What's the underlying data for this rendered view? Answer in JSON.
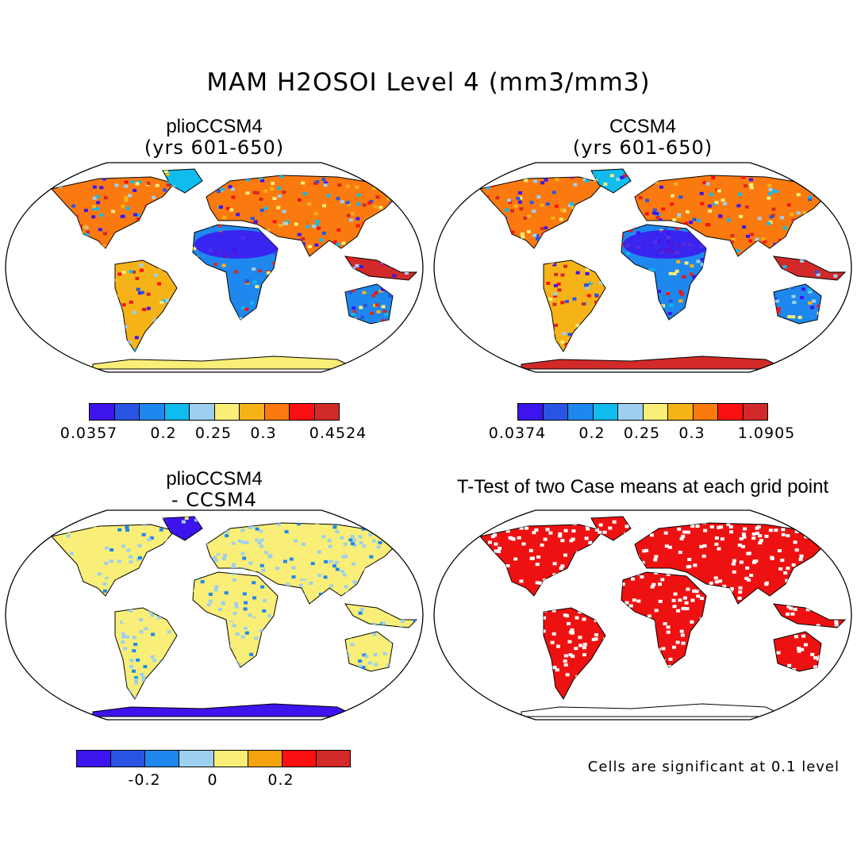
{
  "title": "MAM H2OSOI Level 4 (mm3/mm3)",
  "palettes": {
    "levels": [
      "#3e14ee",
      "#2a55e4",
      "#1e88ee",
      "#10bbee",
      "#9dd0ee",
      "#f9ee77",
      "#f6b318",
      "#fa7a10",
      "#fa1010",
      "#d22a28"
    ],
    "diff": [
      "#3e14ee",
      "#2a55e4",
      "#1e88ee",
      "#9dd0ee",
      "#f9ee77",
      "#f6a310",
      "#fa1010",
      "#d22a28"
    ],
    "signif": "#ee1111"
  },
  "panels": [
    {
      "title": "plioCCSM4",
      "subtitle": "(yrs 601-650)",
      "map_fill": "mixed",
      "colorbar_labels": [
        "0.0357",
        "0.2",
        "0.25",
        "0.3",
        "0.4524"
      ]
    },
    {
      "title": "CCSM4",
      "subtitle": "(yrs 601-650)",
      "map_fill": "mixed",
      "colorbar_labels": [
        "0.0374",
        "0.2",
        "0.25",
        "0.3",
        "1.0905"
      ]
    },
    {
      "title": "plioCCSM4",
      "subtitle": "- CCSM4",
      "map_fill": "difference",
      "colorbar_labels": [
        "-0.2",
        "0",
        "0.2"
      ]
    },
    {
      "title": "T-Test of two Case means at each grid point",
      "map_fill": "significance",
      "note": "Cells are significant at 0.1 level"
    }
  ]
}
